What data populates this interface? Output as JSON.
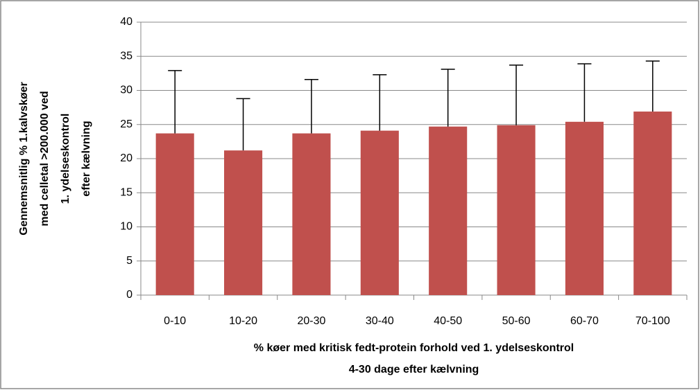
{
  "chart_data": {
    "type": "bar",
    "ylabel": [
      "Gennemsnitlig % 1.kalvskøer",
      "med celletal >200.000 ved",
      "1. ydelseskontrol",
      "efter kælvning"
    ],
    "xlabel": [
      "% køer med kritisk fedt-protein forhold ved 1. ydelseskontrol",
      "4-30 dage efter kælvning"
    ],
    "categories": [
      "0-10",
      "10-20",
      "20-30",
      "30-40",
      "40-50",
      "50-60",
      "60-70",
      "70-100"
    ],
    "values": [
      23.7,
      21.2,
      23.7,
      24.1,
      24.7,
      24.9,
      25.4,
      26.9
    ],
    "errors": [
      9.2,
      7.6,
      7.9,
      8.2,
      8.4,
      8.8,
      8.5,
      7.4
    ],
    "color": "#c0504d",
    "ylim": [
      0,
      40
    ],
    "yticks": [
      0,
      5,
      10,
      15,
      20,
      25,
      30,
      35,
      40
    ],
    "grid": true
  }
}
